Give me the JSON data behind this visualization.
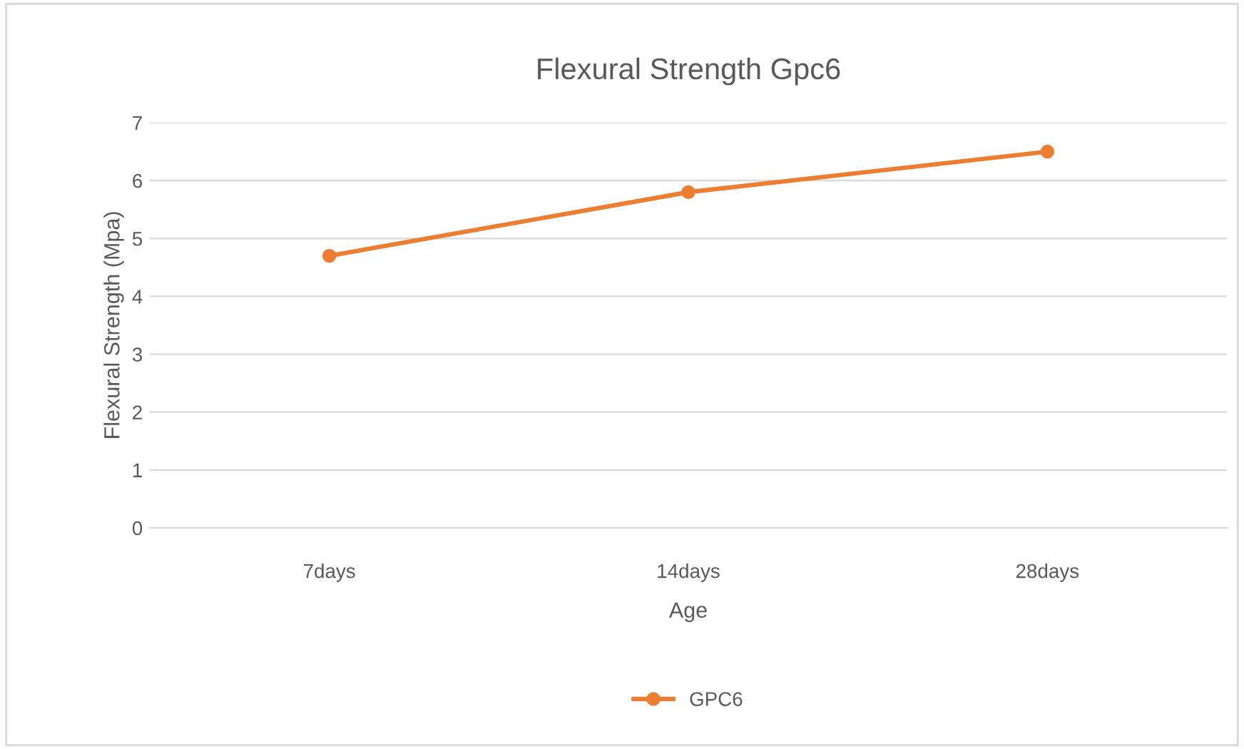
{
  "chart_data": {
    "type": "line",
    "title": "Flexural Strength Gpc6",
    "xlabel": "Age",
    "ylabel": "Flexural Strength (Mpa)",
    "categories": [
      "7days",
      "14days",
      "28days"
    ],
    "series": [
      {
        "name": "GPC6",
        "color": "#ed7d31",
        "values": [
          4.7,
          5.8,
          6.5
        ]
      }
    ],
    "ylim": [
      0,
      7
    ],
    "yticks": [
      0,
      1,
      2,
      3,
      4,
      5,
      6,
      7
    ],
    "grid": "y",
    "legend": "bottom",
    "marker": "circle"
  }
}
